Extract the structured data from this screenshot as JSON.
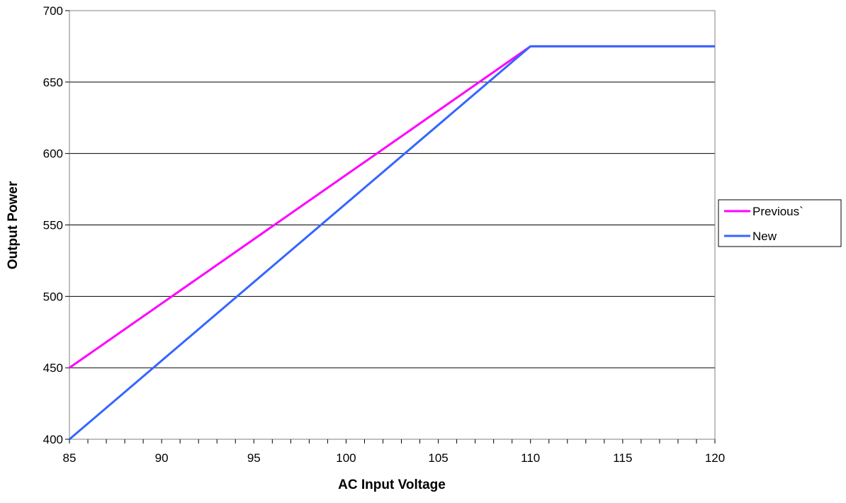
{
  "chart_data": {
    "type": "line",
    "title": "",
    "xlabel": "AC Input Voltage",
    "ylabel": "Output Power",
    "xlim": [
      85,
      120
    ],
    "ylim": [
      400,
      700
    ],
    "x_ticks": [
      85,
      90,
      95,
      100,
      105,
      110,
      115,
      120
    ],
    "y_ticks": [
      400,
      450,
      500,
      550,
      600,
      650,
      700
    ],
    "x_minor_step": 1,
    "grid": "horizontal",
    "legend_position": "right",
    "series": [
      {
        "name": "Previous`",
        "color": "#ff00ff",
        "x": [
          85,
          110,
          120
        ],
        "y": [
          450,
          675,
          675
        ]
      },
      {
        "name": "New",
        "color": "#3366ff",
        "x": [
          85,
          110,
          120
        ],
        "y": [
          400,
          675,
          675
        ]
      }
    ]
  }
}
